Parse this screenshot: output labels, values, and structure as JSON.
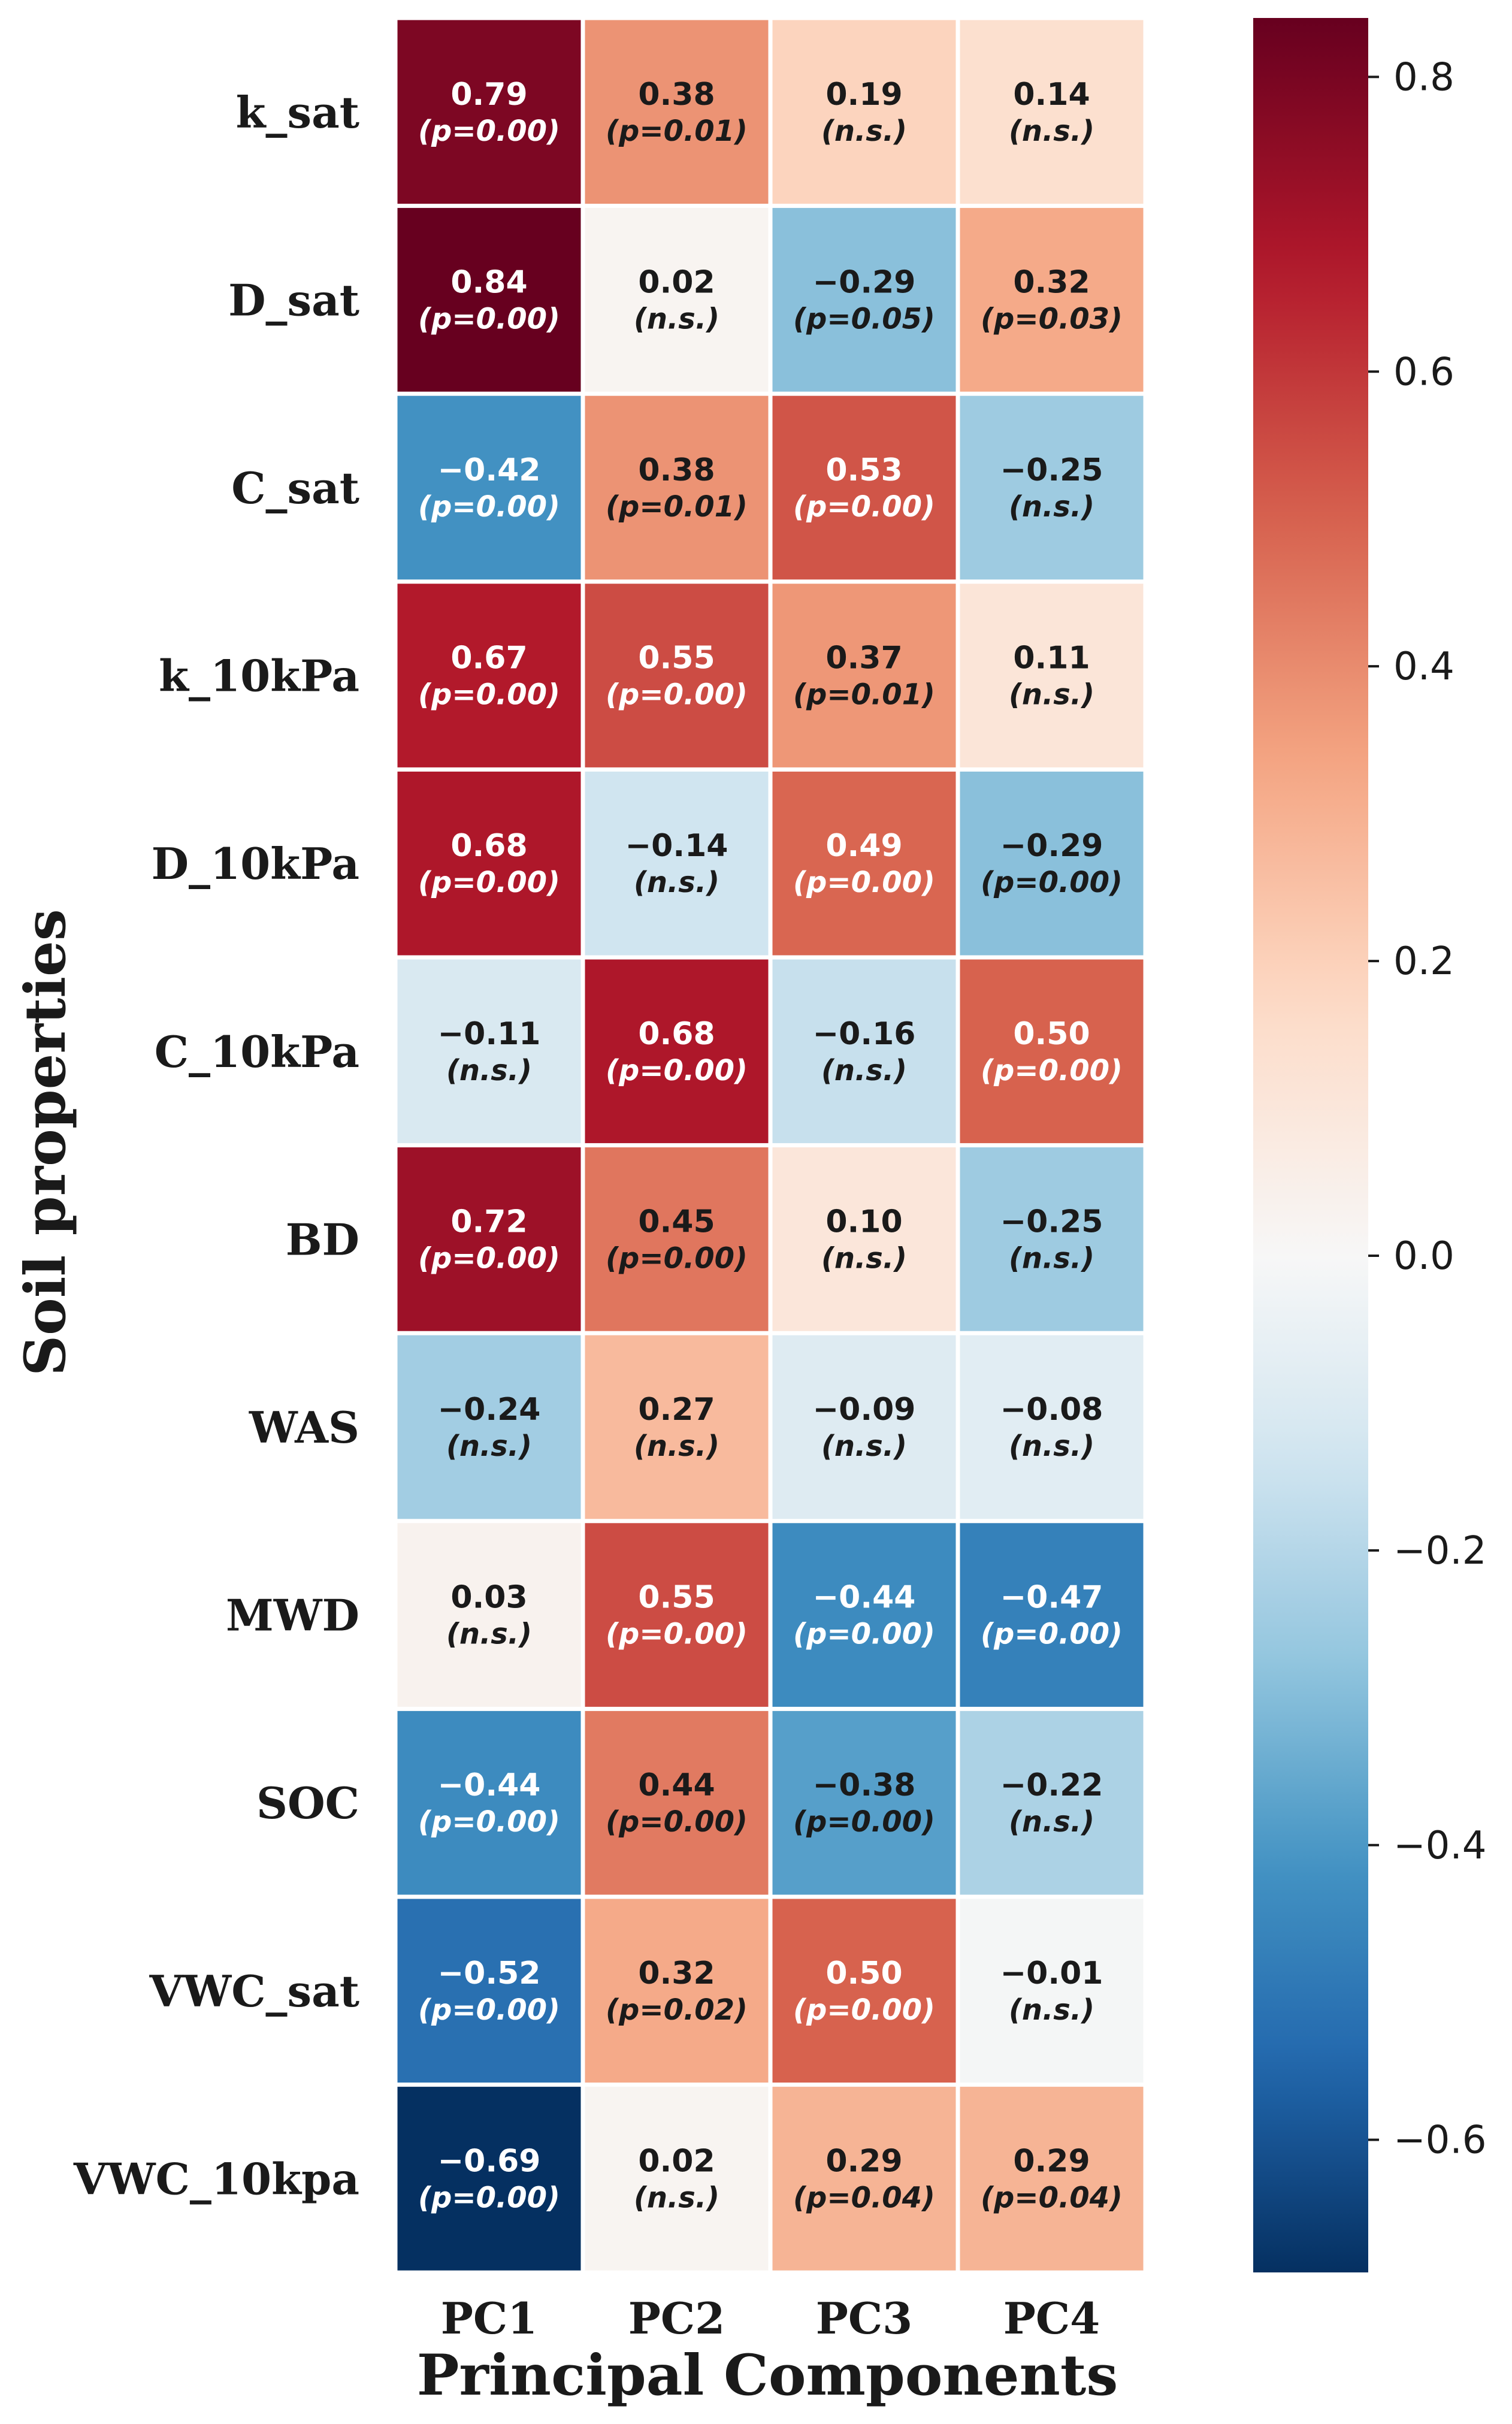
{
  "chart_data": {
    "type": "heatmap",
    "xlabel": "Principal Components",
    "ylabel": "Soil properties",
    "columns": [
      "PC1",
      "PC2",
      "PC3",
      "PC4"
    ],
    "rows": [
      "k_sat",
      "D_sat",
      "C_sat",
      "k_10kPa",
      "D_10kPa",
      "C_10kPa",
      "BD",
      "WAS",
      "MWD",
      "SOC",
      "VWC_sat",
      "VWC_10kpa"
    ],
    "values": [
      [
        0.79,
        0.38,
        0.19,
        0.14
      ],
      [
        0.84,
        0.02,
        -0.29,
        0.32
      ],
      [
        -0.42,
        0.38,
        0.53,
        -0.25
      ],
      [
        0.67,
        0.55,
        0.37,
        0.11
      ],
      [
        0.68,
        -0.14,
        0.49,
        -0.29
      ],
      [
        -0.11,
        0.68,
        -0.16,
        0.5
      ],
      [
        0.72,
        0.45,
        0.1,
        -0.25
      ],
      [
        -0.24,
        0.27,
        -0.09,
        -0.08
      ],
      [
        0.03,
        0.55,
        -0.44,
        -0.47
      ],
      [
        -0.44,
        0.44,
        -0.38,
        -0.22
      ],
      [
        -0.52,
        0.32,
        0.5,
        -0.01
      ],
      [
        -0.69,
        0.02,
        0.29,
        0.29
      ]
    ],
    "value_labels": [
      [
        "0.79",
        "0.38",
        "0.19",
        "0.14"
      ],
      [
        "0.84",
        "0.02",
        "−0.29",
        "0.32"
      ],
      [
        "−0.42",
        "0.38",
        "0.53",
        "−0.25"
      ],
      [
        "0.67",
        "0.55",
        "0.37",
        "0.11"
      ],
      [
        "0.68",
        "−0.14",
        "0.49",
        "−0.29"
      ],
      [
        "−0.11",
        "0.68",
        "−0.16",
        "0.50"
      ],
      [
        "0.72",
        "0.45",
        "0.10",
        "−0.25"
      ],
      [
        "−0.24",
        "0.27",
        "−0.09",
        "−0.08"
      ],
      [
        "0.03",
        "0.55",
        "−0.44",
        "−0.47"
      ],
      [
        "−0.44",
        "0.44",
        "−0.38",
        "−0.22"
      ],
      [
        "−0.52",
        "0.32",
        "0.50",
        "−0.01"
      ],
      [
        "−0.69",
        "0.02",
        "0.29",
        "0.29"
      ]
    ],
    "p_labels": [
      [
        "(p=0.00)",
        "(p=0.01)",
        "(n.s.)",
        "(n.s.)"
      ],
      [
        "(p=0.00)",
        "(n.s.)",
        "(p=0.05)",
        "(p=0.03)"
      ],
      [
        "(p=0.00)",
        "(p=0.01)",
        "(p=0.00)",
        "(n.s.)"
      ],
      [
        "(p=0.00)",
        "(p=0.00)",
        "(p=0.01)",
        "(n.s.)"
      ],
      [
        "(p=0.00)",
        "(n.s.)",
        "(p=0.00)",
        "(p=0.00)"
      ],
      [
        "(n.s.)",
        "(p=0.00)",
        "(n.s.)",
        "(p=0.00)"
      ],
      [
        "(p=0.00)",
        "(p=0.00)",
        "(n.s.)",
        "(n.s.)"
      ],
      [
        "(n.s.)",
        "(n.s.)",
        "(n.s.)",
        "(n.s.)"
      ],
      [
        "(n.s.)",
        "(p=0.00)",
        "(p=0.00)",
        "(p=0.00)"
      ],
      [
        "(p=0.00)",
        "(p=0.00)",
        "(p=0.00)",
        "(n.s.)"
      ],
      [
        "(p=0.00)",
        "(p=0.02)",
        "(p=0.00)",
        "(n.s.)"
      ],
      [
        "(p=0.00)",
        "(n.s.)",
        "(p=0.04)",
        "(p=0.04)"
      ]
    ],
    "colorbar": {
      "colormap": "RdBu_r",
      "vmin": -0.69,
      "vmax": 0.84,
      "ticks": [
        -0.6,
        -0.4,
        -0.2,
        0.0,
        0.2,
        0.4,
        0.6,
        0.8
      ],
      "tick_labels": [
        "−0.6",
        "−0.4",
        "−0.2",
        "0.0",
        "0.2",
        "0.4",
        "0.6",
        "0.8"
      ]
    }
  }
}
